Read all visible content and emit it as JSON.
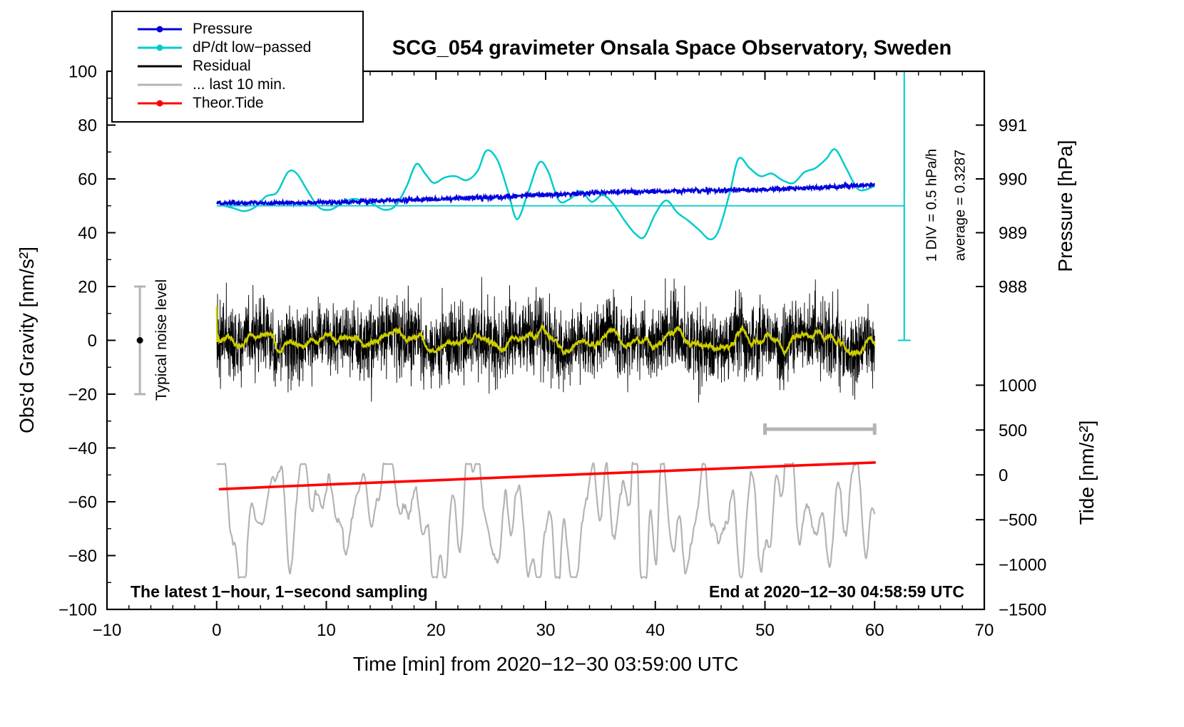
{
  "chart_data": {
    "type": "line",
    "title": "SCG_054 gravimeter Onsala Space Observatory, Sweden",
    "xlabel": "Time [min] from 2020−12−30 03:59:00 UTC",
    "ylabel_left": "Obs'd Gravity [nm/s²]",
    "ylabel_right_pressure": "Pressure [hPa]",
    "ylabel_right_tide": "Tide [nm/s²]",
    "x_range": [
      -10,
      70
    ],
    "x_major_ticks": [
      -10,
      0,
      10,
      20,
      30,
      40,
      50,
      60,
      70
    ],
    "x_minor_step": 2,
    "y_left_range": [
      -100,
      100
    ],
    "y_left_major_ticks": [
      -100,
      -80,
      -60,
      -40,
      -20,
      0,
      20,
      40,
      60,
      80,
      100
    ],
    "y_left_minor_step": 10,
    "grid": false,
    "legend_position": "top-left",
    "legend": [
      {
        "label": "Pressure",
        "color": "#0000dd",
        "marker": true
      },
      {
        "label": "dP/dt low−passed",
        "color": "#00cccc",
        "marker": true
      },
      {
        "label": "Residual",
        "color": "#000000",
        "marker": false
      },
      {
        "label": "... last 10 min.",
        "color": "#b4b4b4",
        "marker": false
      },
      {
        "label": "Theor.Tide",
        "color": "#ff0000",
        "marker": true
      }
    ],
    "pressure_axis": {
      "tick_values": [
        991,
        990,
        989,
        988
      ],
      "tick_positions_left_units": [
        80,
        60,
        40,
        20
      ]
    },
    "tide_axis": {
      "tick_values": [
        1000,
        500,
        0,
        -500,
        -1000,
        -1500
      ],
      "tick_positions_left_units": [
        -16.667,
        -33.333,
        -50,
        -66.667,
        -83.333,
        -100
      ]
    },
    "annotations": {
      "div_note": "1 DIV = 0.5 hPa/h",
      "average_note": "average = 0.3287",
      "noise_label": "Typical noise level",
      "sampling_note": "The latest 1−hour, 1−second sampling",
      "end_note": "End at 2020−12−30 04:58:59 UTC"
    },
    "reference_marks": {
      "pressure_baseline_y": 50,
      "div_scale_x": 62.7,
      "div_scale_y_range": [
        0,
        100
      ],
      "ref_color": "#00cccc",
      "noise_bar": {
        "x": -7,
        "y_range": [
          -20,
          20
        ],
        "center_dot_y": 0,
        "color": "#b4b4b4"
      },
      "duration_bar": {
        "x_range": [
          50,
          60
        ],
        "y": -33,
        "color": "#b4b4b4"
      }
    },
    "series": [
      {
        "name": "Pressure",
        "color": "#0000dd",
        "type": "noisy-line",
        "samples_per_min": 30,
        "noise_sigma": 0.45,
        "x_range": [
          0,
          60
        ],
        "keypoints": [
          [
            0,
            50.9
          ],
          [
            5,
            51.0
          ],
          [
            10,
            51.3
          ],
          [
            15,
            51.8
          ],
          [
            20,
            52.5
          ],
          [
            25,
            53.2
          ],
          [
            30,
            54.1
          ],
          [
            35,
            54.9
          ],
          [
            40,
            55.4
          ],
          [
            45,
            55.7
          ],
          [
            50,
            56.1
          ],
          [
            55,
            56.7
          ],
          [
            60,
            57.9
          ]
        ]
      },
      {
        "name": "dP/dt low−passed",
        "color": "#00cccc",
        "type": "smooth-line",
        "points": [
          [
            0.5,
            50.2
          ],
          [
            1.5,
            49.2
          ],
          [
            2.5,
            48.0
          ],
          [
            3.5,
            49.5
          ],
          [
            4.5,
            53.5
          ],
          [
            5.5,
            55.0
          ],
          [
            6.5,
            62.5
          ],
          [
            7.3,
            62.0
          ],
          [
            8.3,
            55.5
          ],
          [
            9.3,
            49.5
          ],
          [
            10.3,
            48.5
          ],
          [
            11.3,
            50.5
          ],
          [
            12.3,
            52.5
          ],
          [
            13.3,
            52.0
          ],
          [
            14.3,
            50.5
          ],
          [
            15.3,
            48.5
          ],
          [
            16.3,
            50.0
          ],
          [
            17.3,
            57.0
          ],
          [
            18.2,
            65.5
          ],
          [
            19.0,
            62.0
          ],
          [
            19.8,
            58.5
          ],
          [
            20.8,
            60.5
          ],
          [
            21.8,
            61.0
          ],
          [
            22.8,
            59.5
          ],
          [
            23.8,
            63.0
          ],
          [
            24.6,
            70.5
          ],
          [
            25.6,
            67.0
          ],
          [
            26.6,
            55.0
          ],
          [
            27.4,
            45.0
          ],
          [
            28.4,
            55.0
          ],
          [
            29.4,
            66.0
          ],
          [
            30.2,
            63.0
          ],
          [
            31.2,
            52.0
          ],
          [
            32.2,
            52.5
          ],
          [
            33.2,
            55.5
          ],
          [
            34.2,
            51.5
          ],
          [
            35.2,
            54.0
          ],
          [
            36.2,
            50.5
          ],
          [
            37.2,
            44.5
          ],
          [
            38.2,
            39.5
          ],
          [
            39.0,
            38.5
          ],
          [
            40.0,
            47.0
          ],
          [
            41.0,
            52.0
          ],
          [
            42.0,
            47.5
          ],
          [
            43.0,
            44.5
          ],
          [
            44.0,
            41.0
          ],
          [
            45.0,
            37.5
          ],
          [
            45.8,
            41.0
          ],
          [
            46.8,
            55.0
          ],
          [
            47.6,
            67.5
          ],
          [
            48.6,
            64.0
          ],
          [
            49.6,
            61.0
          ],
          [
            50.6,
            62.0
          ],
          [
            51.6,
            59.5
          ],
          [
            52.6,
            58.5
          ],
          [
            53.6,
            62.5
          ],
          [
            54.6,
            64.0
          ],
          [
            55.6,
            67.5
          ],
          [
            56.4,
            71.0
          ],
          [
            57.4,
            64.0
          ],
          [
            58.4,
            56.5
          ],
          [
            59.2,
            56.0
          ],
          [
            60.0,
            57.5
          ]
        ]
      },
      {
        "name": "Residual",
        "color": "#000000",
        "type": "noise",
        "mean": 0,
        "sigma": 6.5,
        "samples_per_min": 60,
        "x_range": [
          0,
          60
        ],
        "clip": [
          -30,
          26
        ]
      },
      {
        "name": "Residual low−passed",
        "color": "#cccc00",
        "type": "running-mean-of-residual",
        "window_samples": 40
      },
      {
        "name": "... last 10 min.",
        "color": "#b4b4b4",
        "type": "smoothed-noise",
        "mean": -65,
        "amplitude": 9.5,
        "samples_per_min": 10,
        "x_range": [
          0,
          60
        ],
        "clip": [
          -88,
          -46
        ]
      },
      {
        "name": "Theor.Tide",
        "color": "#ff0000",
        "type": "line",
        "points": [
          [
            0.3,
            -55.3
          ],
          [
            10,
            -53.6
          ],
          [
            20,
            -52.0
          ],
          [
            30,
            -50.3
          ],
          [
            40,
            -48.7
          ],
          [
            50,
            -47.0
          ],
          [
            60,
            -45.4
          ]
        ]
      }
    ],
    "rng_seed": 20201230
  }
}
